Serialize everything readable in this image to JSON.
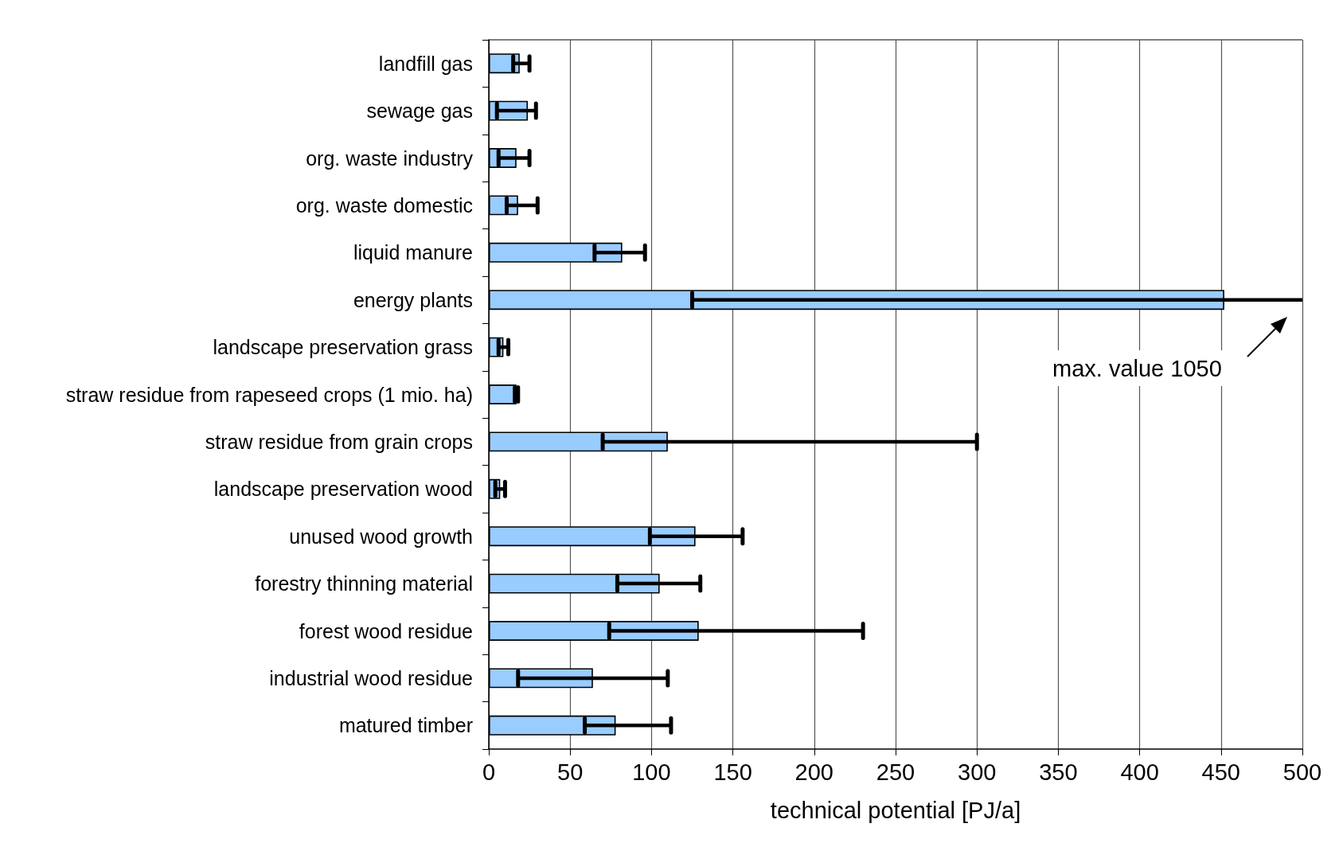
{
  "chart_data": {
    "type": "bar",
    "orientation": "horizontal",
    "xlabel": "technical potential [PJ/a]",
    "categories": [
      "landfill gas",
      "sewage gas",
      "org. waste industry",
      "org. waste domestic",
      "liquid manure",
      "energy plants",
      "landscape preservation grass",
      "straw residue from rapeseed crops (1 mio. ha)",
      "straw residue from grain crops",
      "landscape preservation wood",
      "unused wood growth",
      "forestry thinning material",
      "forest wood residue",
      "industrial wood residue",
      "matured timber"
    ],
    "values": [
      19,
      24,
      17,
      18,
      82,
      452,
      9,
      17,
      110,
      7,
      127,
      105,
      129,
      64,
      78
    ],
    "errors": [
      [
        15,
        25
      ],
      [
        5,
        29
      ],
      [
        6,
        25
      ],
      [
        11,
        30
      ],
      [
        65,
        96
      ],
      [
        125,
        1050
      ],
      [
        6,
        12
      ],
      [
        16,
        18
      ],
      [
        70,
        300
      ],
      [
        4,
        10
      ],
      [
        99,
        156
      ],
      [
        79,
        130
      ],
      [
        74,
        230
      ],
      [
        18,
        110
      ],
      [
        59,
        112
      ]
    ],
    "color": "#99ccff",
    "xlim": [
      0,
      500
    ],
    "xticks": [
      0,
      50,
      100,
      150,
      200,
      250,
      300,
      350,
      400,
      450,
      500
    ],
    "grid": "x",
    "annotations": [
      "max. value 1050"
    ]
  }
}
